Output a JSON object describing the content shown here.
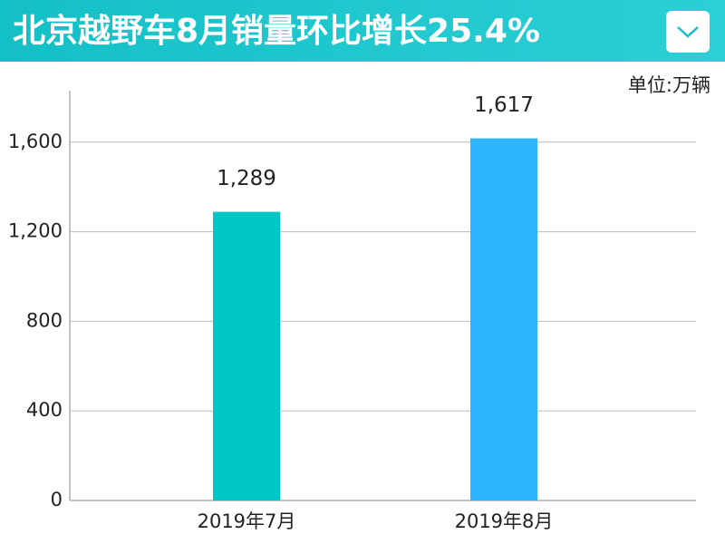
{
  "chart_data": {
    "type": "bar",
    "title": "北京越野车8月销量环比增长25.4%",
    "unit_label": "单位:万辆",
    "categories": [
      "2019年7月",
      "2019年8月"
    ],
    "values": [
      1289,
      1617
    ],
    "value_labels": [
      "1,289",
      "1,617"
    ],
    "colors": [
      "#00c6c6",
      "#2db6ff"
    ],
    "ylim": [
      0,
      1830
    ],
    "yticks": [
      0,
      400,
      800,
      {
        "value": 1200,
        "label": "1,200"
      },
      {
        "value": 1600,
        "label": "1,600"
      }
    ],
    "grid": true
  }
}
